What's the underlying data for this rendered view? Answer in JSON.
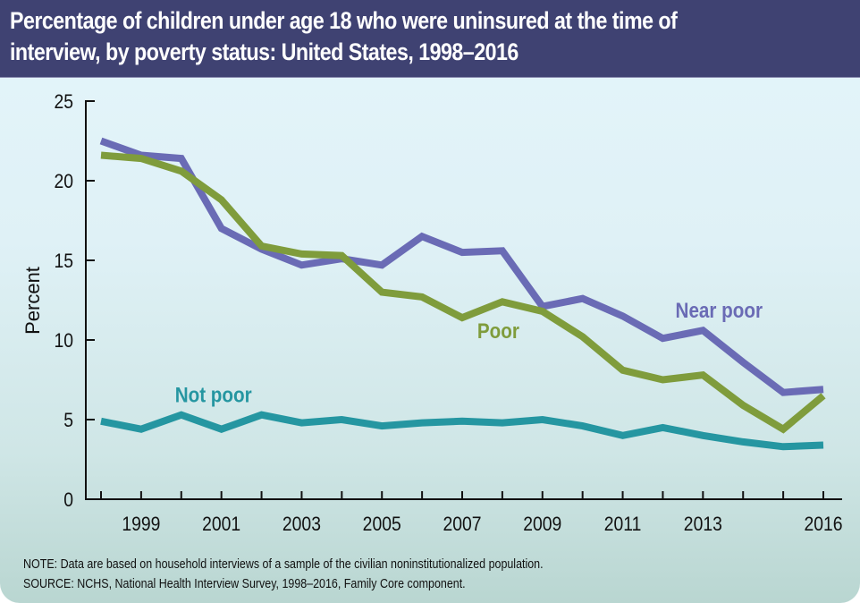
{
  "header": {
    "title_line1": "Percentage of children under age 18 who were uninsured at the time of",
    "title_line2": "interview, by poverty status: United States, 1998–2016"
  },
  "footer": {
    "note": "NOTE: Data are based on household interviews of a sample of the civilian noninstitutionalized population.",
    "source": "SOURCE: NCHS, National Health Interview Survey, 1998–2016, Family Core component."
  },
  "chart_data": {
    "type": "line",
    "title": "Percentage of children under age 18 who were uninsured at the time of interview, by poverty status: United States, 1998–2016",
    "xlabel": "",
    "ylabel": "Percent",
    "x": [
      1998,
      1999,
      2000,
      2001,
      2002,
      2003,
      2004,
      2005,
      2006,
      2007,
      2008,
      2009,
      2010,
      2011,
      2012,
      2013,
      2014,
      2015,
      2016
    ],
    "xlim": [
      1998,
      2016
    ],
    "ylim": [
      0,
      25
    ],
    "yticks": [
      0,
      5,
      10,
      15,
      20,
      25
    ],
    "xtick_labels": [
      {
        "x": 1999,
        "label": "1999"
      },
      {
        "x": 2001,
        "label": "2001"
      },
      {
        "x": 2003,
        "label": "2003"
      },
      {
        "x": 2005,
        "label": "2005"
      },
      {
        "x": 2007,
        "label": "2007"
      },
      {
        "x": 2009,
        "label": "2009"
      },
      {
        "x": 2011,
        "label": "2011"
      },
      {
        "x": 2013,
        "label": "2013"
      },
      {
        "x": 2016,
        "label": "2016"
      }
    ],
    "grid": false,
    "legend": "inline labels",
    "series": [
      {
        "name": "Near poor",
        "color": "#6a6bb5",
        "label_at": {
          "x": 2013.4,
          "y": 11.4
        },
        "values": [
          22.5,
          21.6,
          21.4,
          17.0,
          15.7,
          14.7,
          15.1,
          14.7,
          16.5,
          15.5,
          15.6,
          12.1,
          12.6,
          11.5,
          10.1,
          10.6,
          8.6,
          6.7,
          6.9
        ]
      },
      {
        "name": "Poor",
        "color": "#7f9c3c",
        "label_at": {
          "x": 2007.9,
          "y": 10.1
        },
        "values": [
          21.6,
          21.4,
          20.6,
          18.8,
          15.9,
          15.4,
          15.3,
          13.0,
          12.7,
          11.4,
          12.4,
          11.8,
          10.2,
          8.1,
          7.5,
          7.8,
          5.9,
          4.4,
          6.5
        ]
      },
      {
        "name": "Not poor",
        "color": "#2596a1",
        "label_at": {
          "x": 2000.8,
          "y": 6.1
        },
        "values": [
          4.9,
          4.4,
          5.3,
          4.4,
          5.3,
          4.8,
          5.0,
          4.6,
          4.8,
          4.9,
          4.8,
          5.0,
          4.6,
          4.0,
          4.5,
          4.0,
          3.6,
          3.3,
          3.4
        ]
      }
    ]
  }
}
